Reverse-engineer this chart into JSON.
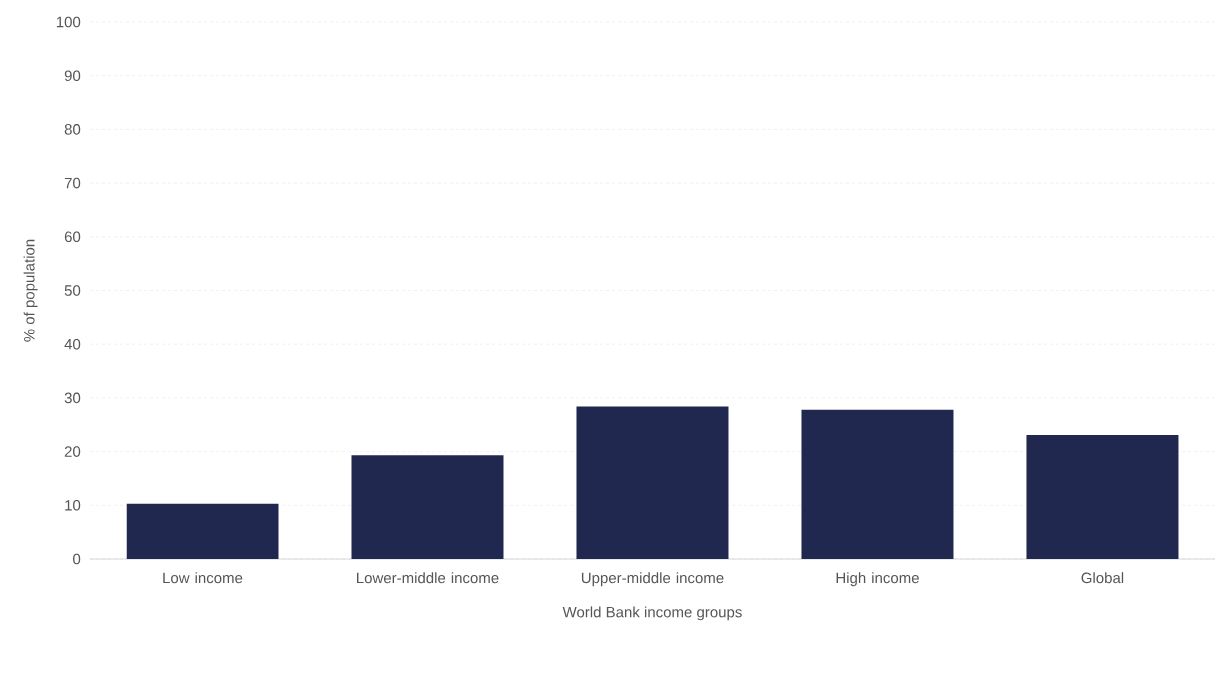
{
  "chart_data": {
    "type": "bar",
    "xlabel": "World Bank income groups",
    "ylabel": "% of population",
    "categories": [
      "Low income",
      "Lower-middle income",
      "Upper-middle income",
      "High income",
      "Global"
    ],
    "values": [
      10.3,
      19.3,
      28.4,
      27.8,
      23.1
    ],
    "color": "#20284f",
    "ylim": [
      0,
      100
    ],
    "yticks": [
      0,
      10,
      20,
      30,
      40,
      50,
      60,
      70,
      80,
      90,
      100
    ],
    "grid": "y"
  }
}
